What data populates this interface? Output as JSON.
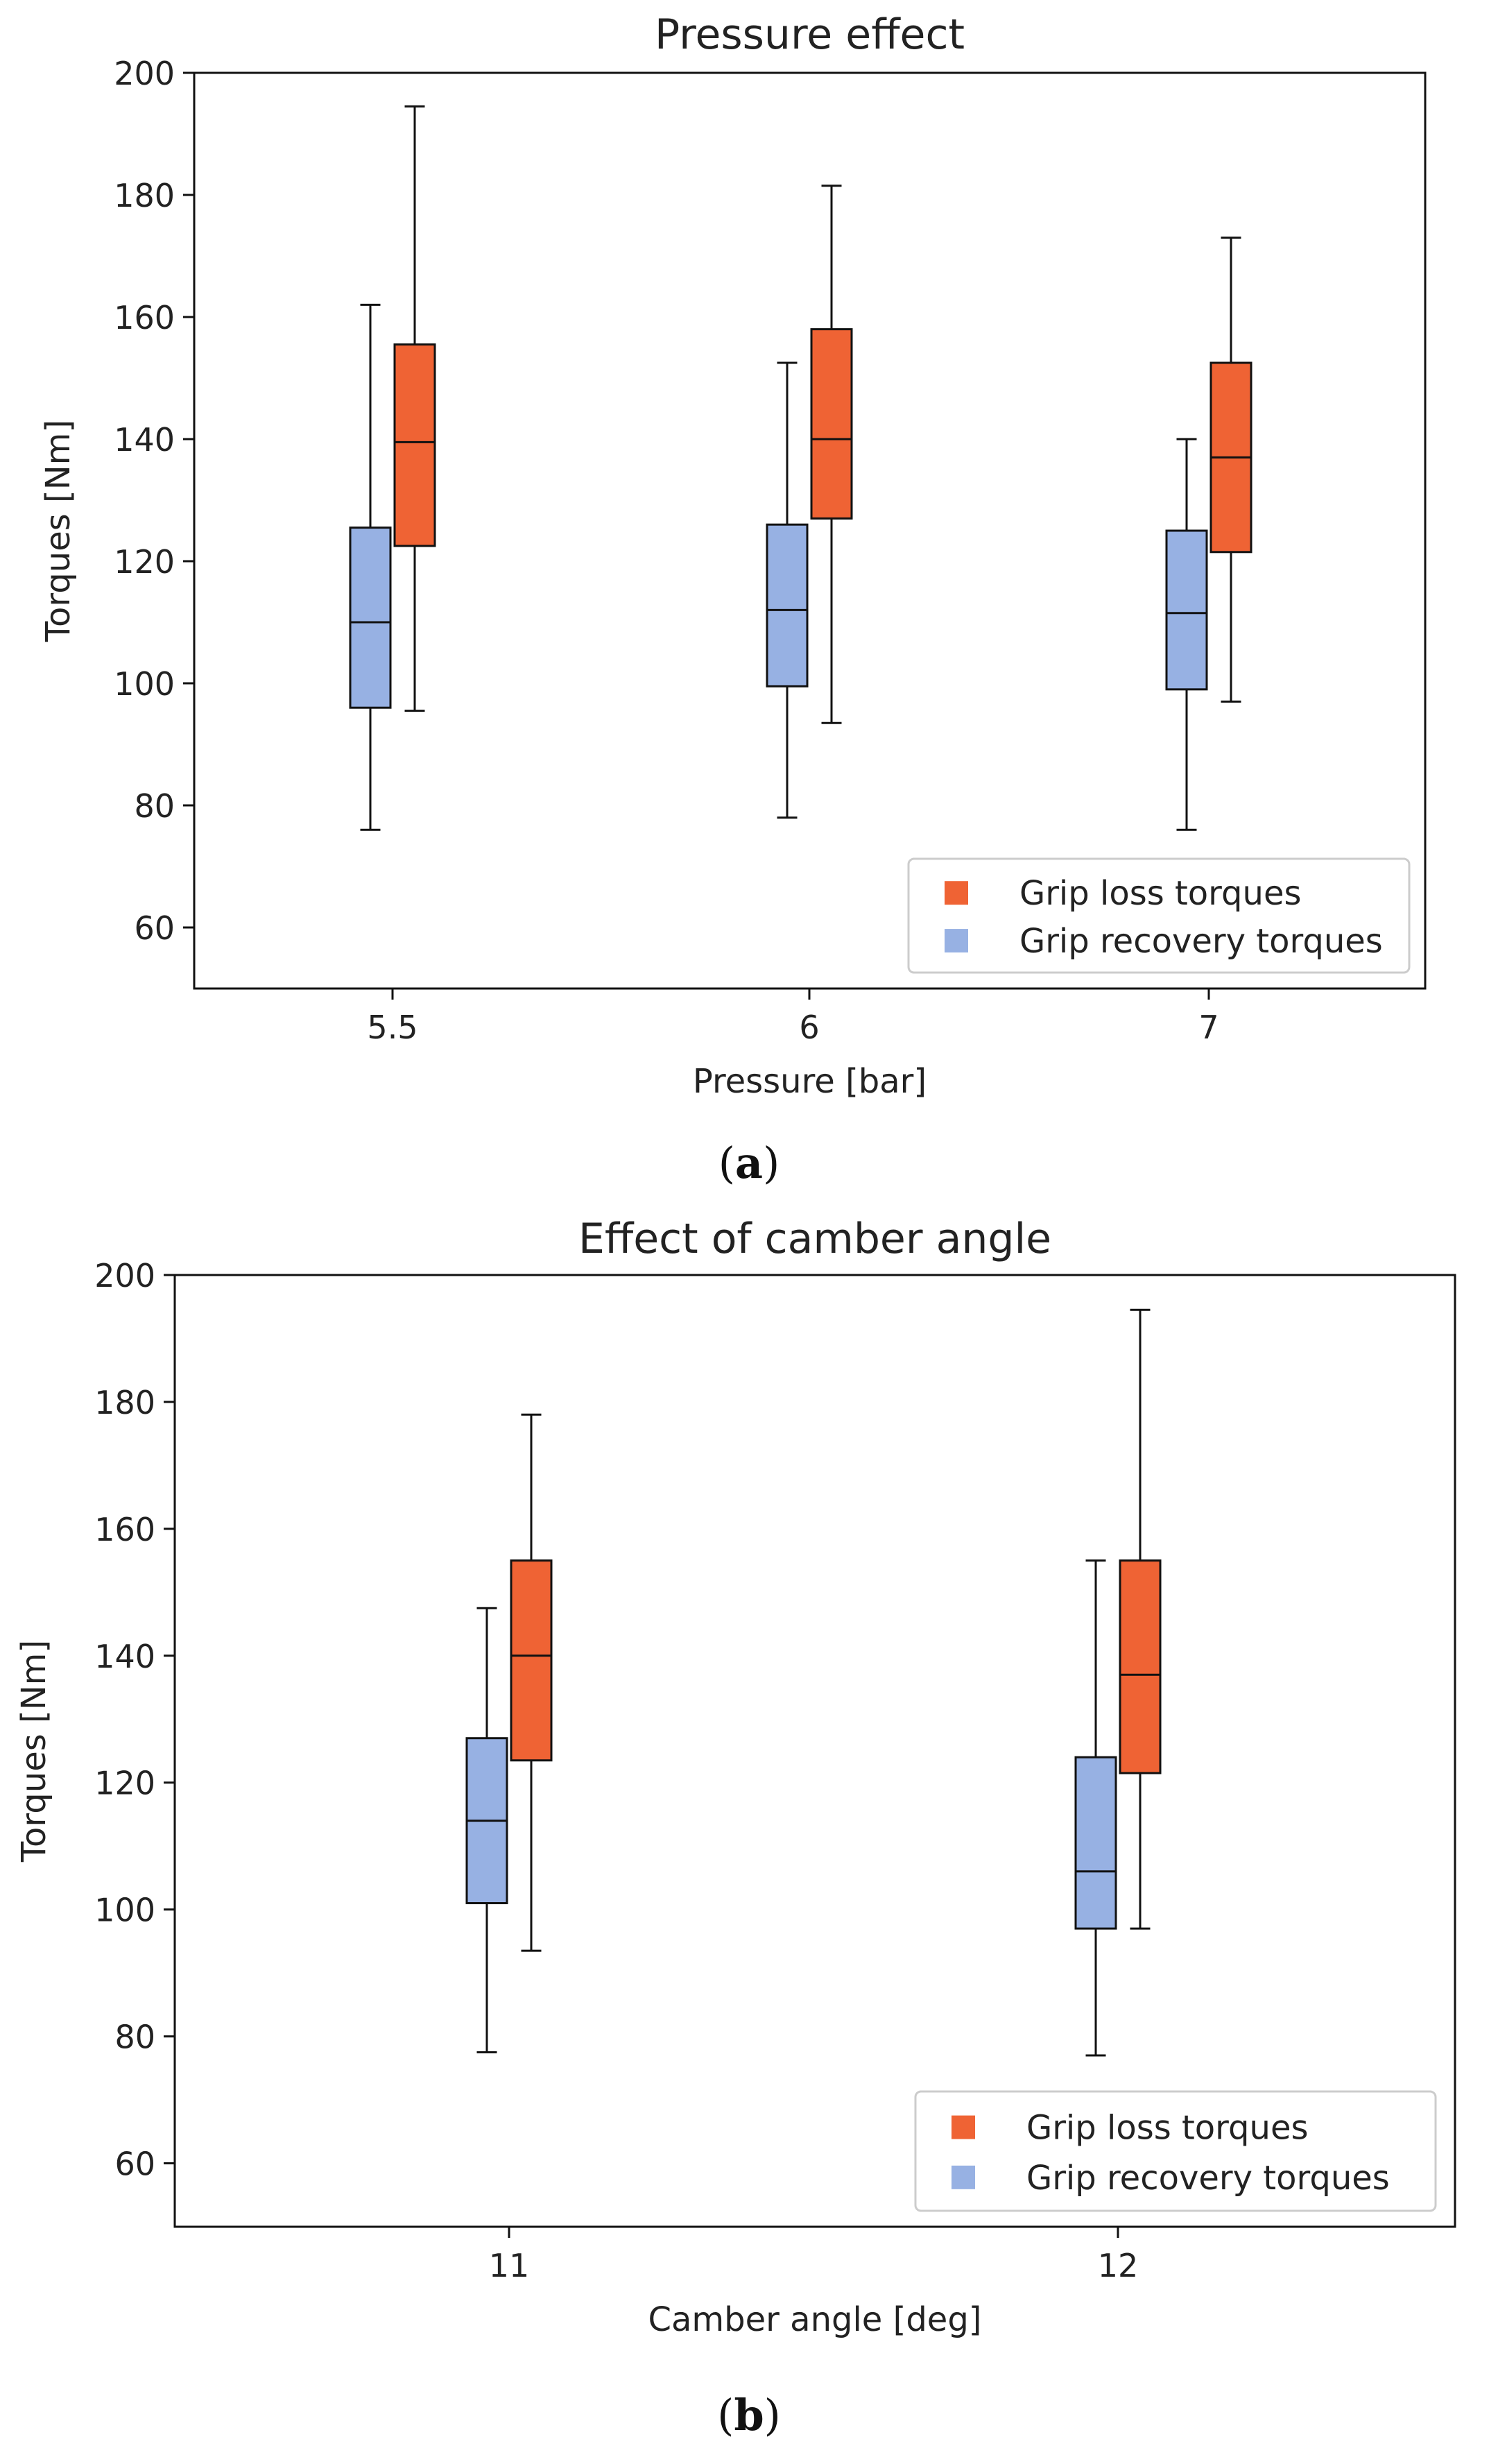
{
  "colors": {
    "grip_loss": "#ef6334",
    "grip_recovery": "#97b1e3",
    "axis": "#111111",
    "legend_border": "#cccccc"
  },
  "chart_data": [
    {
      "type": "box",
      "title": "Pressure effect",
      "xlabel": "Pressure [bar]",
      "ylabel": "Torques [Nm]",
      "ylim": [
        50,
        200
      ],
      "yticks": [
        60,
        80,
        100,
        120,
        140,
        160,
        180,
        200
      ],
      "categories": [
        "5.5",
        "6",
        "7"
      ],
      "legend_position": "lower-right",
      "caption_prefix": "(",
      "caption_letter": "a",
      "caption_suffix": ")",
      "series": [
        {
          "name": "Grip recovery torques",
          "color_key": "grip_recovery",
          "boxes": [
            {
              "whislo": 76,
              "q1": 96,
              "med": 110,
              "q3": 125.5,
              "whishi": 162
            },
            {
              "whislo": 78,
              "q1": 99.5,
              "med": 112,
              "q3": 126,
              "whishi": 152.5
            },
            {
              "whislo": 76,
              "q1": 99,
              "med": 111.5,
              "q3": 125,
              "whishi": 140
            }
          ]
        },
        {
          "name": "Grip loss torques",
          "color_key": "grip_loss",
          "boxes": [
            {
              "whislo": 95.5,
              "q1": 122.5,
              "med": 139.5,
              "q3": 155.5,
              "whishi": 194.5
            },
            {
              "whislo": 93.5,
              "q1": 127,
              "med": 140,
              "q3": 158,
              "whishi": 181.5
            },
            {
              "whislo": 97,
              "q1": 121.5,
              "med": 137,
              "q3": 152.5,
              "whishi": 173
            }
          ]
        }
      ]
    },
    {
      "type": "box",
      "title": "Effect of camber angle",
      "xlabel": "Camber angle [deg]",
      "ylabel": "Torques [Nm]",
      "ylim": [
        50,
        200
      ],
      "yticks": [
        60,
        80,
        100,
        120,
        140,
        160,
        180,
        200
      ],
      "categories": [
        "11",
        "12"
      ],
      "legend_position": "lower-right",
      "caption_prefix": "(",
      "caption_letter": "b",
      "caption_suffix": ")",
      "series": [
        {
          "name": "Grip recovery torques",
          "color_key": "grip_recovery",
          "boxes": [
            {
              "whislo": 77.5,
              "q1": 101,
              "med": 114,
              "q3": 127,
              "whishi": 147.5
            },
            {
              "whislo": 77,
              "q1": 97,
              "med": 106,
              "q3": 124,
              "whishi": 155
            }
          ]
        },
        {
          "name": "Grip loss torques",
          "color_key": "grip_loss",
          "boxes": [
            {
              "whislo": 93.5,
              "q1": 123.5,
              "med": 140,
              "q3": 155,
              "whishi": 178
            },
            {
              "whislo": 97,
              "q1": 121.5,
              "med": 137,
              "q3": 155,
              "whishi": 194.5
            }
          ]
        }
      ]
    }
  ]
}
